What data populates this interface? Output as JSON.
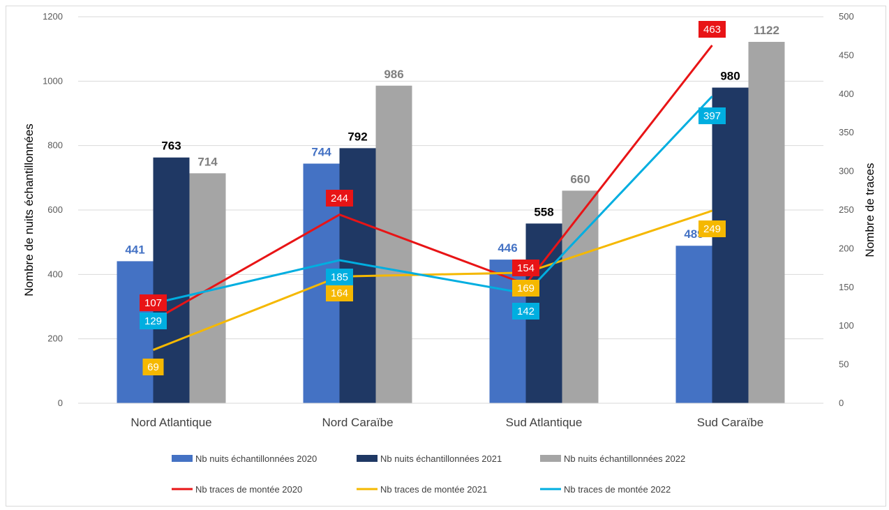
{
  "chart_data": {
    "type": "bar",
    "categories": [
      "Nord Atlantique",
      "Nord Caraïbe",
      "Sud Atlantique",
      "Sud Caraïbe"
    ],
    "ylabel": "Nombre de nuits échantillonnées",
    "y2label": "Nombre de traces",
    "ylim": [
      0,
      1200
    ],
    "y2lim": [
      0,
      500
    ],
    "yticks": [
      "0",
      "200",
      "400",
      "600",
      "800",
      "1000",
      "1200"
    ],
    "y2ticks": [
      "0",
      "50",
      "100",
      "150",
      "200",
      "250",
      "300",
      "350",
      "400",
      "450",
      "500"
    ],
    "grid": true,
    "legend_position": "bottom",
    "bar_series": [
      {
        "name": "Nb nuits échantillonnées 2020",
        "color": "#4472c4",
        "label_color": "#4472c4",
        "values": [
          441,
          744,
          446,
          489
        ]
      },
      {
        "name": "Nb nuits échantillonnées 2021",
        "color": "#1f3864",
        "label_color": "#000000",
        "values": [
          763,
          792,
          558,
          980
        ]
      },
      {
        "name": "Nb nuits échantillonnées 2022",
        "color": "#a5a5a5",
        "label_color": "#7f7f7f",
        "values": [
          714,
          986,
          660,
          1122
        ]
      }
    ],
    "line_series": [
      {
        "name": "Nb traces de montée 2020",
        "color": "#e81416",
        "axis": "secondary",
        "values": [
          107,
          244,
          154,
          463
        ]
      },
      {
        "name": "Nb traces de montée 2021",
        "color": "#f5b800",
        "axis": "secondary",
        "values": [
          69,
          164,
          169,
          249
        ]
      },
      {
        "name": "Nb traces de montée 2022",
        "color": "#00aee0",
        "axis": "secondary",
        "values": [
          129,
          185,
          142,
          397
        ]
      }
    ]
  }
}
